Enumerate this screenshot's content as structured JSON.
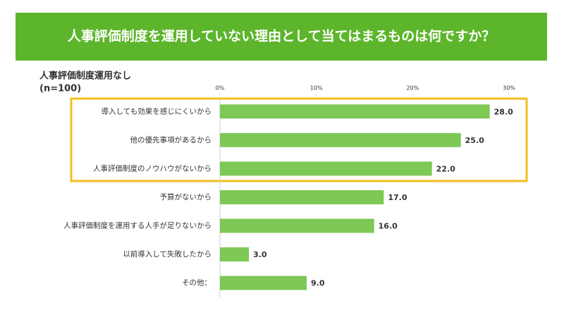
{
  "chart_data": {
    "type": "barh",
    "title": "人事評価制度を運用していない理由として当てはまるものは何ですか？",
    "subtitle": "人事評価制度運用なし",
    "sample": "(n=100)",
    "categories": [
      "導入しても効果を感じにくいから",
      "他の優先事項があるから",
      "人事評価制度のノウハウがないから",
      "予算がないから",
      "人事評価制度を運用する人手が足りないから",
      "以前導入して失敗したから",
      "その他："
    ],
    "values": [
      28,
      25,
      22,
      17,
      16,
      3,
      9
    ],
    "value_labels": [
      "28.0",
      "25.0",
      "22.0",
      "17.0",
      "16.0",
      "3.0",
      "9.0"
    ],
    "color": "#7ec855",
    "xlim": [
      0,
      30
    ],
    "xticks": [
      {
        "value": 0,
        "label": "0%"
      },
      {
        "value": 10,
        "label": "10%"
      },
      {
        "value": 20,
        "label": "20%"
      },
      {
        "value": 30,
        "label": "30%"
      }
    ]
  }
}
